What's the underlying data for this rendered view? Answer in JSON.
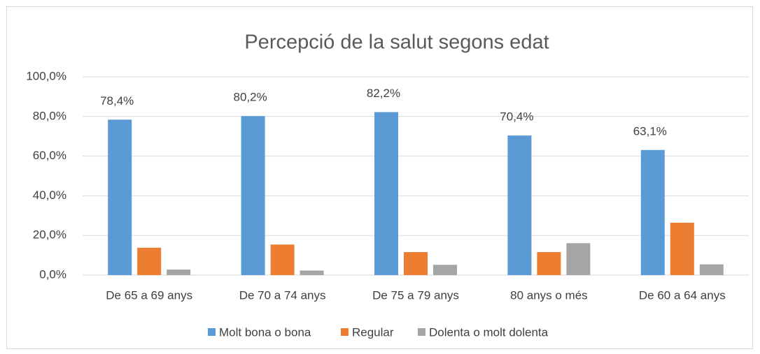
{
  "chart_data": {
    "type": "bar",
    "title": "Percepció de la salut segons edat",
    "categories": [
      "De 65 a 69 anys",
      "De 70 a 74 anys",
      "De 75 a 79 anys",
      "80 anys o més",
      "De 60 a 64 anys"
    ],
    "series": [
      {
        "name": "Molt bona o bona",
        "color": "#5b9bd5",
        "values": [
          78.4,
          80.2,
          82.2,
          70.4,
          63.1
        ],
        "value_labels": [
          "78,4%",
          "80,2%",
          "82,2%",
          "70,4%",
          "63,1%"
        ]
      },
      {
        "name": "Regular",
        "color": "#ed7d31",
        "values": [
          13.8,
          15.4,
          11.6,
          11.6,
          26.4
        ]
      },
      {
        "name": "Dolenta o molt dolenta",
        "color": "#a5a5a5",
        "values": [
          2.8,
          2.3,
          5.2,
          16.1,
          5.4
        ]
      }
    ],
    "ylim": [
      0,
      100
    ],
    "yticks": [
      {
        "value": 0,
        "label": "0,0%"
      },
      {
        "value": 20,
        "label": "20,0%"
      },
      {
        "value": 40,
        "label": "40,0%"
      },
      {
        "value": 60,
        "label": "60,0%"
      },
      {
        "value": 80,
        "label": "80,0%"
      },
      {
        "value": 100,
        "label": "100,0%"
      }
    ],
    "grid": true,
    "legend": "bottom"
  }
}
